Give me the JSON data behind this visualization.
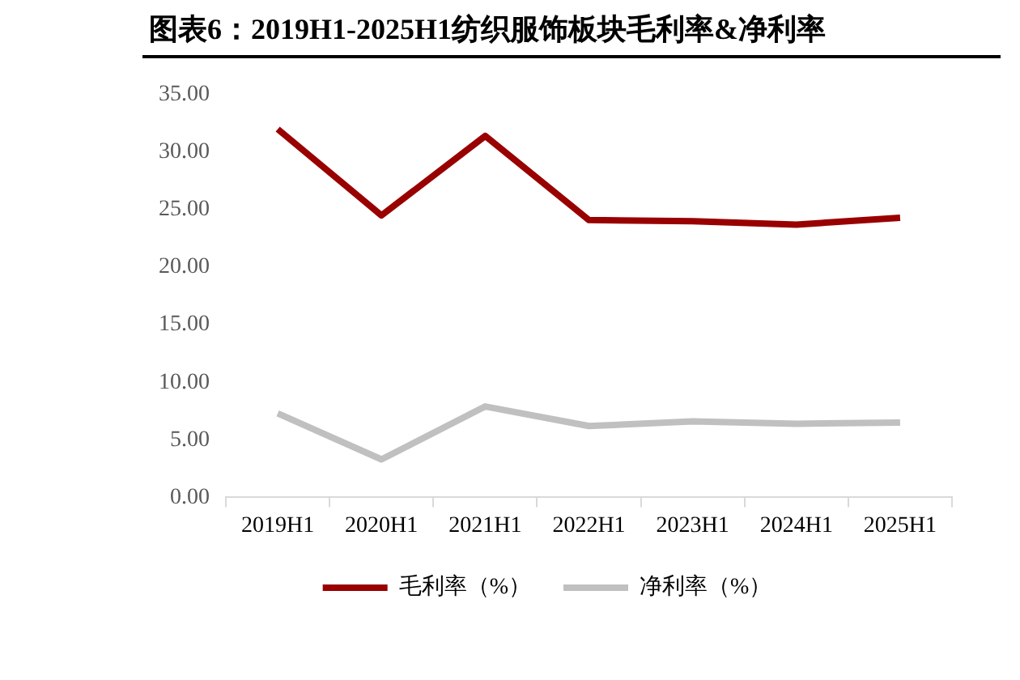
{
  "chart_data": {
    "type": "line",
    "title": "图表6：2019H1-2025H1纺织服饰板块毛利率&净利率",
    "categories": [
      "2019H1",
      "2020H1",
      "2021H1",
      "2022H1",
      "2023H1",
      "2024H1",
      "2025H1"
    ],
    "series": [
      {
        "name": "毛利率（%）",
        "color": "#990000",
        "values": [
          32.0,
          24.5,
          31.4,
          24.1,
          24.0,
          23.7,
          24.3
        ]
      },
      {
        "name": "净利率（%）",
        "color": "#c0c0c0",
        "values": [
          7.3,
          3.3,
          7.9,
          6.2,
          6.6,
          6.4,
          6.5
        ]
      }
    ],
    "ylim": [
      0,
      35
    ],
    "yticks": [
      {
        "value": 0,
        "label": "0.00"
      },
      {
        "value": 5,
        "label": "5.00"
      },
      {
        "value": 10,
        "label": "10.00"
      },
      {
        "value": 15,
        "label": "15.00"
      },
      {
        "value": 20,
        "label": "20.00"
      },
      {
        "value": 25,
        "label": "25.00"
      },
      {
        "value": 30,
        "label": "30.00"
      },
      {
        "value": 35,
        "label": "35.00"
      }
    ],
    "grid": false,
    "legend": "bottom",
    "marker": "none",
    "line_style": "solid"
  }
}
